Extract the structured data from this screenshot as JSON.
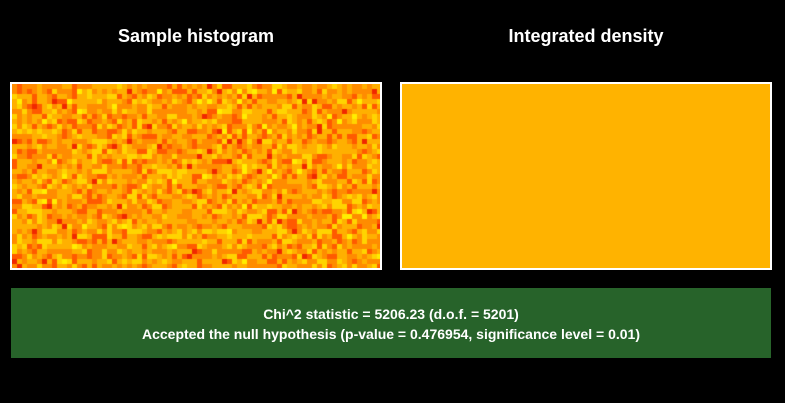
{
  "panels": {
    "histogram": {
      "title": "Sample histogram",
      "colors": [
        "#ffee00",
        "#ffd400",
        "#ffb000",
        "#ff8c00",
        "#ff5a00",
        "#f02800"
      ]
    },
    "density": {
      "title": "Integrated density",
      "fill_color": "#ffb300"
    }
  },
  "result": {
    "background": "#27632a",
    "line1": "Chi^2 statistic = 5206.23 (d.o.f. = 5201)",
    "line2": "Accepted the null hypothesis (p-value = 0.476954, significance level = 0.01)"
  }
}
